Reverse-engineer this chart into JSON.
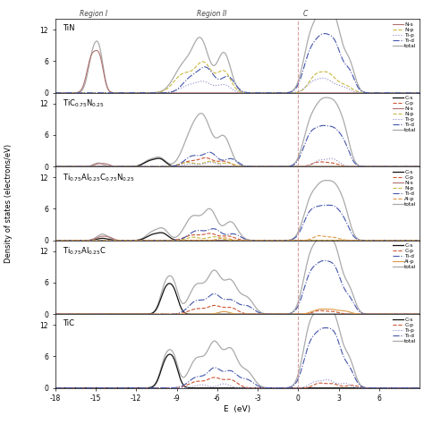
{
  "panels": [
    {
      "title": "TiN",
      "ylim": [
        0,
        14
      ],
      "yticks": [
        0,
        6,
        12
      ],
      "legend": [
        {
          "name": "N-s",
          "color": "#B07070",
          "ls": "-",
          "lw": 0.8
        },
        {
          "name": "N-p",
          "color": "#C8B840",
          "ls": "--",
          "lw": 0.8
        },
        {
          "name": "Ti-p",
          "color": "#8888CC",
          "ls": ":",
          "lw": 0.8
        },
        {
          "name": "Ti-d",
          "color": "#4455AA",
          "ls": "-.",
          "lw": 0.8
        },
        {
          "name": "total",
          "color": "#AAAAAA",
          "ls": "-",
          "lw": 0.9
        }
      ]
    },
    {
      "title": "TiC$_{0.75}$N$_{0.25}$",
      "ylim": [
        0,
        14
      ],
      "yticks": [
        0,
        6,
        12
      ],
      "legend": [
        {
          "name": "C-s",
          "color": "#111111",
          "ls": "-",
          "lw": 0.9
        },
        {
          "name": "C-p",
          "color": "#CC5533",
          "ls": "--",
          "lw": 0.8
        },
        {
          "name": "N-s",
          "color": "#B07070",
          "ls": "-",
          "lw": 0.8
        },
        {
          "name": "N-p",
          "color": "#C8B840",
          "ls": "--",
          "lw": 0.8
        },
        {
          "name": "Ti-p",
          "color": "#8888CC",
          "ls": ":",
          "lw": 0.8
        },
        {
          "name": "Ti-d",
          "color": "#4455AA",
          "ls": "-.",
          "lw": 0.8
        },
        {
          "name": "total",
          "color": "#AAAAAA",
          "ls": "-",
          "lw": 0.9
        }
      ]
    },
    {
      "title": "Ti$_{0.75}$Al$_{0.25}$C$_{0.75}$N$_{0.25}$",
      "ylim": [
        0,
        14
      ],
      "yticks": [
        0,
        6,
        12
      ],
      "legend": [
        {
          "name": "C-s",
          "color": "#111111",
          "ls": "-",
          "lw": 0.9
        },
        {
          "name": "C-p",
          "color": "#CC5533",
          "ls": "--",
          "lw": 0.8
        },
        {
          "name": "N-s",
          "color": "#B07070",
          "ls": "-",
          "lw": 0.8
        },
        {
          "name": "N-p",
          "color": "#C8B840",
          "ls": "--",
          "lw": 0.8
        },
        {
          "name": "Ti-d",
          "color": "#4455AA",
          "ls": "-.",
          "lw": 0.8
        },
        {
          "name": "Al-p",
          "color": "#DD9944",
          "ls": "--",
          "lw": 0.8
        },
        {
          "name": "total",
          "color": "#AAAAAA",
          "ls": "-",
          "lw": 0.9
        }
      ]
    },
    {
      "title": "Ti$_{0.75}$Al$_{0.25}$C",
      "ylim": [
        0,
        14
      ],
      "yticks": [
        0,
        6,
        12
      ],
      "legend": [
        {
          "name": "C-s",
          "color": "#111111",
          "ls": "-",
          "lw": 0.9
        },
        {
          "name": "C-p",
          "color": "#CC5533",
          "ls": "--",
          "lw": 0.8
        },
        {
          "name": "Ti-d",
          "color": "#4455AA",
          "ls": "-.",
          "lw": 0.8
        },
        {
          "name": "Al-p",
          "color": "#DD9944",
          "ls": "-",
          "lw": 0.8
        },
        {
          "name": "total",
          "color": "#AAAAAA",
          "ls": "-",
          "lw": 0.9
        }
      ]
    },
    {
      "title": "TiC",
      "ylim": [
        0,
        14
      ],
      "yticks": [
        0,
        6,
        12
      ],
      "legend": [
        {
          "name": "C-s",
          "color": "#111111",
          "ls": "-",
          "lw": 0.9
        },
        {
          "name": "C-p",
          "color": "#CC5533",
          "ls": "--",
          "lw": 0.8
        },
        {
          "name": "Ti-p",
          "color": "#8888CC",
          "ls": ":",
          "lw": 0.8
        },
        {
          "name": "Ti-d",
          "color": "#4455AA",
          "ls": "-.",
          "lw": 0.8
        },
        {
          "name": "total",
          "color": "#AAAAAA",
          "ls": "-",
          "lw": 0.9
        }
      ]
    }
  ],
  "xlim": [
    -18,
    9
  ],
  "xticks": [
    -18,
    -15,
    -12,
    -9,
    -6,
    -3,
    0,
    3,
    6
  ],
  "xlabel": "E  (eV)",
  "ylabel": "Density of states (electrons/eV)",
  "fermi_x": 0.0,
  "region1_label": "Region I",
  "region2_label": "Region II",
  "region3_label": "C",
  "figsize": [
    4.74,
    4.74
  ],
  "dpi": 100
}
